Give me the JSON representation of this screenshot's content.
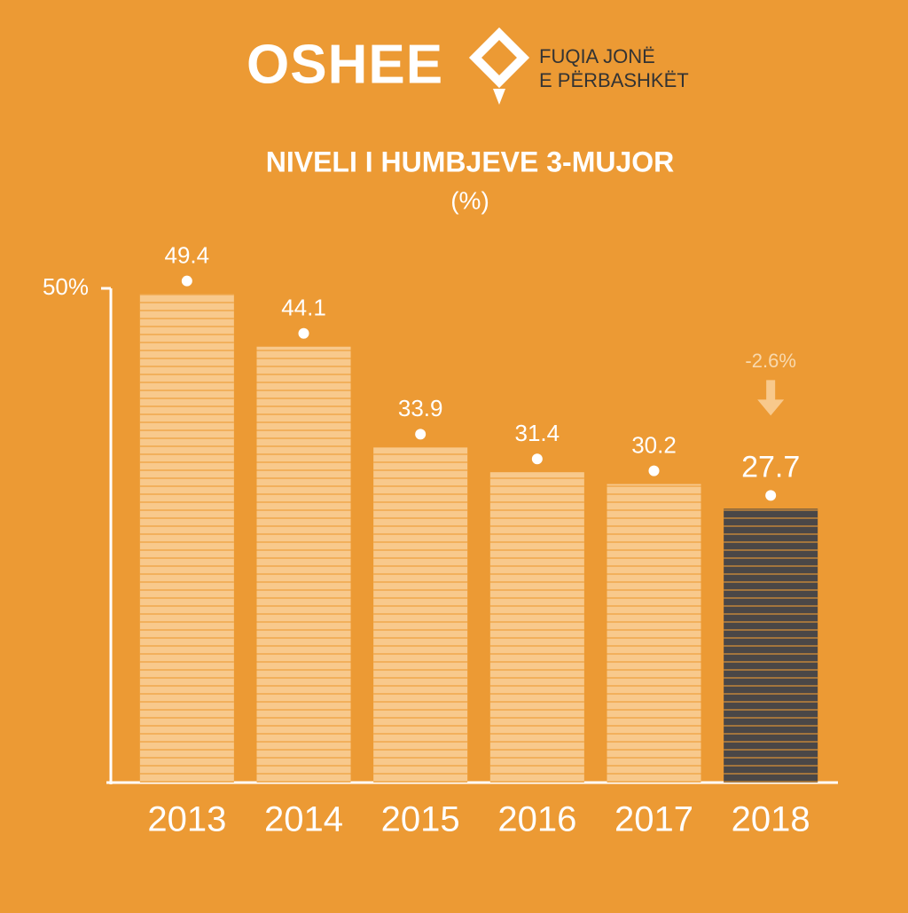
{
  "header": {
    "logo": "OSHEE",
    "tagline": [
      "FUQIA JONË",
      "E PËRBASHKËT"
    ]
  },
  "chart_data": {
    "type": "bar",
    "title": "NIVELI I HUMBJEVE 3-MUJOR",
    "subtitle": "(%)",
    "categories": [
      "2013",
      "2014",
      "2015",
      "2016",
      "2017",
      "2018"
    ],
    "values": [
      49.4,
      44.1,
      33.9,
      31.4,
      30.2,
      27.7
    ],
    "colors": [
      "#f8c98c",
      "#f8c98c",
      "#f8c98c",
      "#f8c98c",
      "#f8c98c",
      "#4a4747"
    ],
    "ylim": [
      0,
      50
    ],
    "yticks": [
      {
        "value": 50,
        "label": "50%"
      }
    ],
    "annotation": "-2.6%"
  }
}
